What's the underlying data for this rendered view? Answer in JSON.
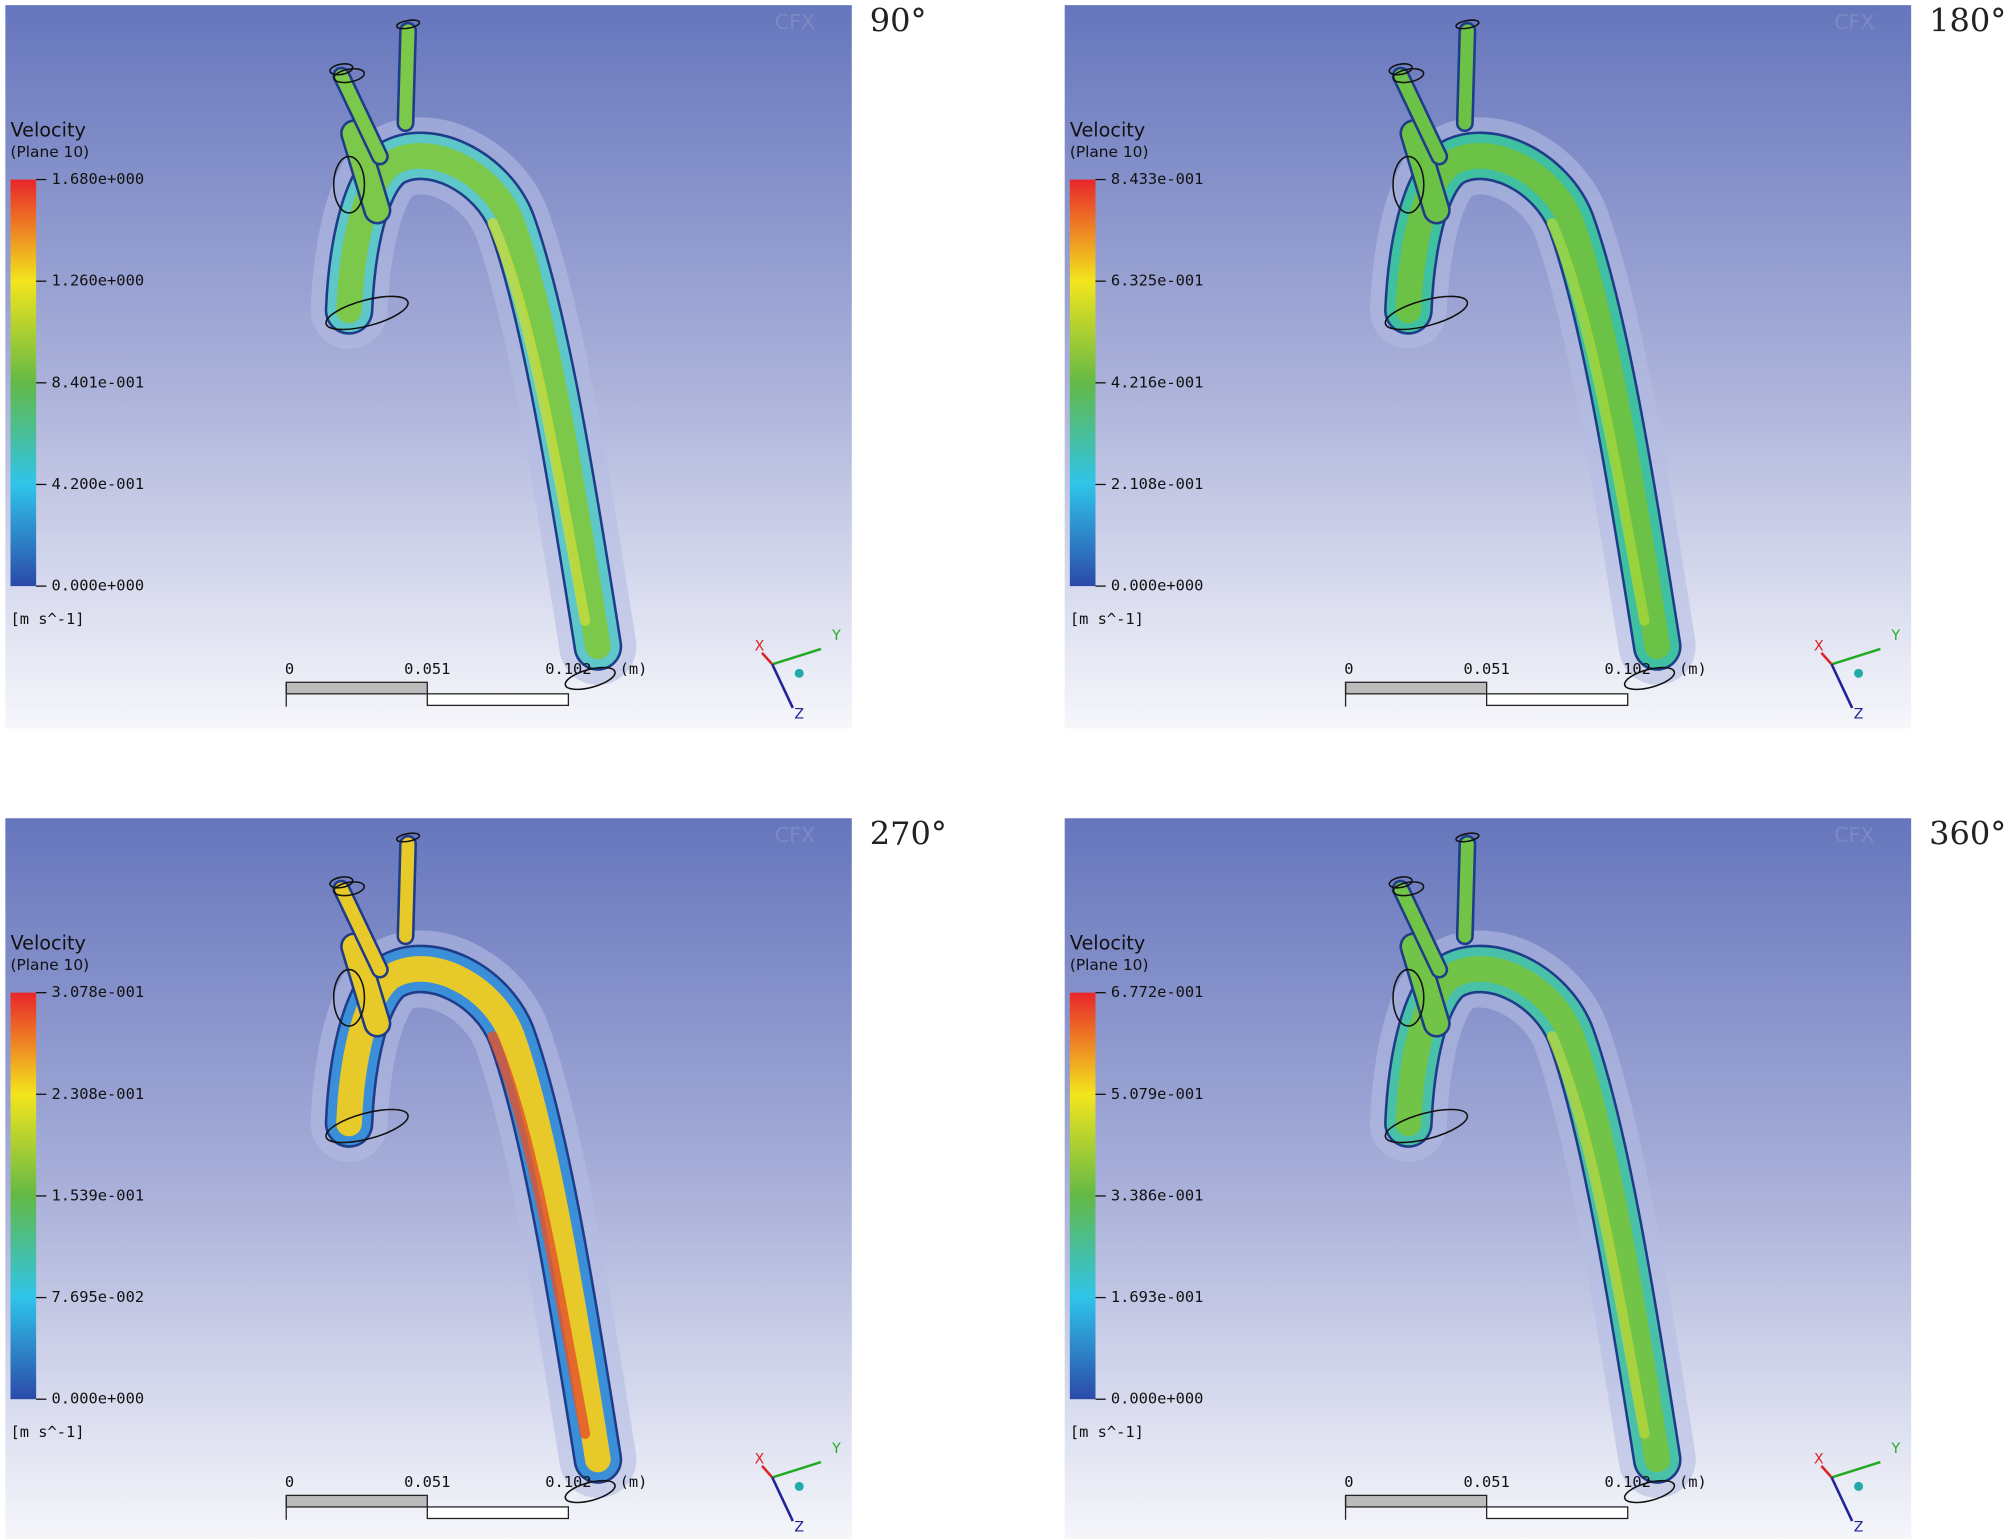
{
  "panels": [
    {
      "angle": "90°",
      "watermark": "CFX",
      "legend": {
        "title": "Velocity",
        "subtitle": "(Plane 10)",
        "ticks": [
          "1.680e+000",
          "1.260e+000",
          "8.401e-001",
          "4.200e-001",
          "0.000e+000"
        ],
        "unit": "[m s^-1]"
      },
      "scale": {
        "labels": [
          "0",
          "0.051",
          "0.102"
        ],
        "unit": "(m)"
      },
      "axes": [
        "X",
        "Y",
        "Z"
      ]
    },
    {
      "angle": "180°",
      "watermark": "CFX",
      "legend": {
        "title": "Velocity",
        "subtitle": "(Plane 10)",
        "ticks": [
          "8.433e-001",
          "6.325e-001",
          "4.216e-001",
          "2.108e-001",
          "0.000e+000"
        ],
        "unit": "[m s^-1]"
      },
      "scale": {
        "labels": [
          "0",
          "0.051",
          "0.102"
        ],
        "unit": "(m)"
      },
      "axes": [
        "X",
        "Y",
        "Z"
      ]
    },
    {
      "angle": "270°",
      "watermark": "CFX",
      "legend": {
        "title": "Velocity",
        "subtitle": "(Plane 10)",
        "ticks": [
          "3.078e-001",
          "2.308e-001",
          "1.539e-001",
          "7.695e-002",
          "0.000e+000"
        ],
        "unit": "[m s^-1]"
      },
      "scale": {
        "labels": [
          "0",
          "0.051",
          "0.102"
        ],
        "unit": "(m)"
      },
      "axes": [
        "X",
        "Y",
        "Z"
      ]
    },
    {
      "angle": "360°",
      "watermark": "CFX",
      "legend": {
        "title": "Velocity",
        "subtitle": "(Plane 10)",
        "ticks": [
          "6.772e-001",
          "5.079e-001",
          "3.386e-001",
          "1.693e-001",
          "0.000e+000"
        ],
        "unit": "[m s^-1]"
      },
      "scale": {
        "labels": [
          "0",
          "0.051",
          "0.102"
        ],
        "unit": "(m)"
      },
      "axes": [
        "X",
        "Y",
        "Z"
      ]
    }
  ]
}
